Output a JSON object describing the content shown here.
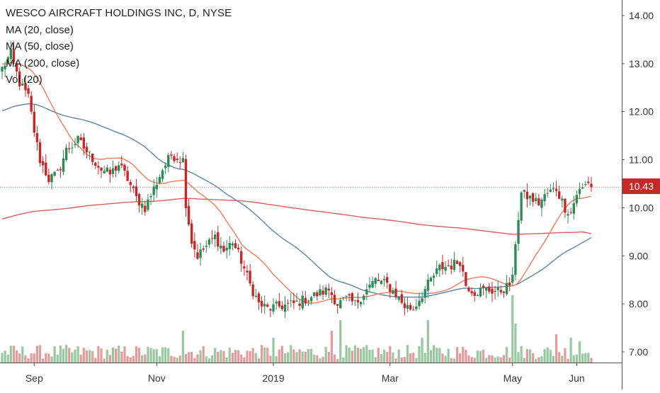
{
  "chart_data": {
    "type": "candlestick",
    "title": "WESCO AIRCRAFT HOLDINGS INC, D, NYSE",
    "indicators": [
      "MA (20, close)",
      "MA (50, close)",
      "MA (200, close)",
      "Vol (20)"
    ],
    "y_ticks": [
      "14.00",
      "13.00",
      "12.00",
      "11.00",
      "10.00",
      "9.00",
      "8.00",
      "7.00"
    ],
    "ylim": [
      6.78,
      14.12
    ],
    "x_ticks": [
      {
        "label": "Sep",
        "index": 11
      },
      {
        "label": "Nov",
        "index": 53
      },
      {
        "label": "2019",
        "index": 93
      },
      {
        "label": "Mar",
        "index": 133
      },
      {
        "label": "May",
        "index": 175
      },
      {
        "label": "Jun",
        "index": 197
      }
    ],
    "bar_count": 203,
    "last_price": "10.43",
    "colors": {
      "up": "#2e8b57",
      "down": "#c62828",
      "vol_up": "#98c7a0",
      "vol_down": "#e39b9b",
      "ma20": "#f07a5a",
      "ma50": "#5b84a8",
      "ma200": "#e25c5c",
      "price_line": "#e05555",
      "axis_text": "#333333"
    },
    "price_anchors": [
      [
        0,
        12.9
      ],
      [
        3,
        13.2
      ],
      [
        6,
        12.6
      ],
      [
        9,
        12.3
      ],
      [
        11,
        11.6
      ],
      [
        13,
        11.0
      ],
      [
        16,
        10.6
      ],
      [
        19,
        10.7
      ],
      [
        22,
        11.2
      ],
      [
        26,
        11.4
      ],
      [
        30,
        11.1
      ],
      [
        34,
        10.8
      ],
      [
        37,
        10.7
      ],
      [
        40,
        10.9
      ],
      [
        43,
        10.6
      ],
      [
        46,
        10.2
      ],
      [
        49,
        10.0
      ],
      [
        52,
        10.4
      ],
      [
        55,
        10.8
      ],
      [
        58,
        11.1
      ],
      [
        62,
        11.0
      ],
      [
        63,
        10.1
      ],
      [
        65,
        9.3
      ],
      [
        67,
        9.0
      ],
      [
        70,
        9.2
      ],
      [
        73,
        9.4
      ],
      [
        76,
        9.1
      ],
      [
        79,
        9.3
      ],
      [
        82,
        8.9
      ],
      [
        85,
        8.4
      ],
      [
        88,
        8.0
      ],
      [
        91,
        7.9
      ],
      [
        95,
        7.95
      ],
      [
        100,
        8.0
      ],
      [
        104,
        8.1
      ],
      [
        108,
        8.2
      ],
      [
        112,
        8.3
      ],
      [
        115,
        8.0
      ],
      [
        118,
        8.1
      ],
      [
        121,
        8.0
      ],
      [
        125,
        8.3
      ],
      [
        128,
        8.5
      ],
      [
        132,
        8.4
      ],
      [
        135,
        8.2
      ],
      [
        138,
        7.95
      ],
      [
        141,
        7.9
      ],
      [
        144,
        8.2
      ],
      [
        147,
        8.5
      ],
      [
        150,
        8.75
      ],
      [
        154,
        8.8
      ],
      [
        157,
        8.9
      ],
      [
        159,
        8.4
      ],
      [
        162,
        8.25
      ],
      [
        166,
        8.3
      ],
      [
        170,
        8.25
      ],
      [
        173,
        8.35
      ],
      [
        175,
        8.5
      ],
      [
        176,
        9.3
      ],
      [
        178,
        10.3
      ],
      [
        181,
        10.2
      ],
      [
        184,
        10.1
      ],
      [
        187,
        10.3
      ],
      [
        190,
        10.4
      ],
      [
        193,
        10.0
      ],
      [
        195,
        9.9
      ],
      [
        197,
        10.3
      ],
      [
        199,
        10.4
      ],
      [
        201,
        10.55
      ],
      [
        202,
        10.43
      ]
    ],
    "ma_start": {
      "ma20": 13.0,
      "ma50": 12.0,
      "ma200": 9.75
    },
    "volume_spikes": [
      {
        "index": 62,
        "value": 0.45
      },
      {
        "index": 93,
        "value": 0.35
      },
      {
        "index": 113,
        "value": 0.45
      },
      {
        "index": 116,
        "value": 0.6
      },
      {
        "index": 144,
        "value": 0.35
      },
      {
        "index": 146,
        "value": 0.6
      },
      {
        "index": 175,
        "value": 0.95
      },
      {
        "index": 176,
        "value": 0.55
      },
      {
        "index": 190,
        "value": 0.4
      },
      {
        "index": 195,
        "value": 0.35
      },
      {
        "index": 198,
        "value": 0.3
      }
    ]
  }
}
